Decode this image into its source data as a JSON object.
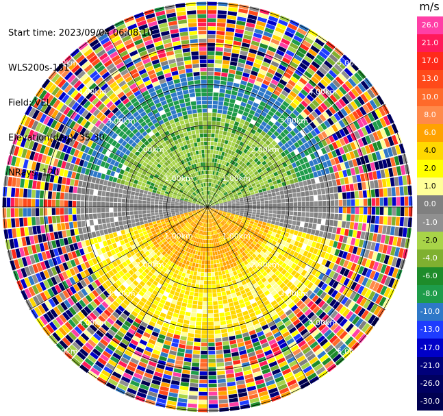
{
  "meta": {
    "start_time": "Start time: 2023/09/04 06:08:10",
    "instrument": "WLS200s-181",
    "field": "Field: VEL",
    "elevation": "Elevation(deg): 35.30",
    "nrays": "NRays: 120"
  },
  "chart_data": {
    "type": "heatmap",
    "projection": "polar-ppi",
    "field": "VEL",
    "rays": 120,
    "range_rings_km": [
      1.0,
      2.0,
      3.0,
      4.0,
      5.0
    ],
    "ring_labels": [
      "1.00km",
      "2.00km",
      "3.00km",
      "4.00km",
      "5.00km"
    ],
    "colorbar": {
      "unit": "m/s",
      "levels": [
        "26.0",
        "21.0",
        "17.0",
        "13.0",
        "10.0",
        "8.0",
        "6.0",
        "4.0",
        "2.0",
        "1.0",
        "0.0",
        "-1.0",
        "-2.0",
        "-4.0",
        "-6.0",
        "-8.0",
        "-10.0",
        "-13.0",
        "-17.0",
        "-21.0",
        "-26.0",
        "-30.0"
      ],
      "colors": [
        "#ff3fa6",
        "#ff1a5a",
        "#ff2a1a",
        "#ff4a1a",
        "#ff6a2a",
        "#ff8a4a",
        "#ffa200",
        "#ffd800",
        "#ffff00",
        "#ffff99",
        "#808080",
        "#909090",
        "#a8d448",
        "#7fb030",
        "#1e8c2a",
        "#1e9c4a",
        "#2e78c8",
        "#1e3cff",
        "#0000c8",
        "#00007a",
        "#000060",
        "#000050"
      ]
    },
    "near_field_pattern": {
      "north_half": "negative (green / dark green, -2 to -8 m/s)",
      "south_half": "positive (yellow / orange, 2 to 6 m/s)",
      "east_west_axis": "near zero (grey)"
    }
  }
}
